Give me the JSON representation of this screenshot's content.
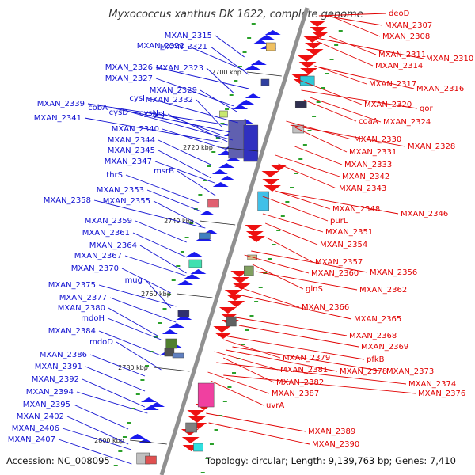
{
  "title": "Myxococcus xanthus DK 1622, complete genome",
  "accession": "Accession: NC_008095",
  "topology": "Topology: circular; Length: 9,139,763 bp; Genes: 7,410",
  "colors": {
    "left_label": "#1010d0",
    "right_label": "#e00000",
    "backbone": "#909090"
  },
  "ruler": [
    "2700 kbp",
    "2720 kbp",
    "2740 kbp",
    "2760 kbp",
    "2780 kbp",
    "2800 kbp"
  ],
  "left_labels": [
    "MXAN_2315",
    "MXAN_2322",
    "MXAN_2321",
    "MXAN_2326",
    "MXAN_2323",
    "MXAN_2327",
    "MXAN_2329",
    "cysI",
    "MXAN_2332",
    "MXAN_2339",
    "cobA",
    "cysD",
    "cysN",
    "MXAN_2341",
    "cysJ",
    "MXAN_2340",
    "MXAN_2344",
    "MXAN_2345",
    "MXAN_2347",
    "msrB",
    "thrS",
    "MXAN_2353",
    "MXAN_2355",
    "MXAN_2358",
    "MXAN_2359",
    "MXAN_2361",
    "MXAN_2364",
    "MXAN_2367",
    "MXAN_2370",
    "mug",
    "MXAN_2375",
    "MXAN_2377",
    "MXAN_2380",
    "mdoH",
    "MXAN_2384",
    "mdoD",
    "MXAN_2386",
    "MXAN_2391",
    "MXAN_2392",
    "MXAN_2394",
    "MXAN_2395",
    "MXAN_2402",
    "MXAN_2406",
    "MXAN_2407"
  ],
  "right_labels": [
    "deoD",
    "MXAN_2307",
    "MXAN_2308",
    "MXAN_2311",
    "MXAN_2310",
    "MXAN_2314",
    "MXAN_2317",
    "MXAN_2316",
    "MXAN_2320",
    "gor",
    "coaA",
    "MXAN_2324",
    "MXAN_2330",
    "MXAN_2328",
    "MXAN_2331",
    "MXAN_2333",
    "MXAN_2342",
    "MXAN_2343",
    "MXAN_2348",
    "MXAN_2346",
    "purL",
    "MXAN_2351",
    "MXAN_2354",
    "MXAN_2357",
    "MXAN_2360",
    "MXAN_2356",
    "glnS",
    "MXAN_2362",
    "MXAN_2366",
    "MXAN_2365",
    "MXAN_2368",
    "MXAN_2369",
    "pfkB",
    "MXAN_2379",
    "MXAN_2378",
    "MXAN_2373",
    "MXAN_2381",
    "MXAN_2374",
    "MXAN_2382",
    "MXAN_2376",
    "MXAN_2387",
    "uvrA",
    "MXAN_2389",
    "MXAN_2390"
  ]
}
